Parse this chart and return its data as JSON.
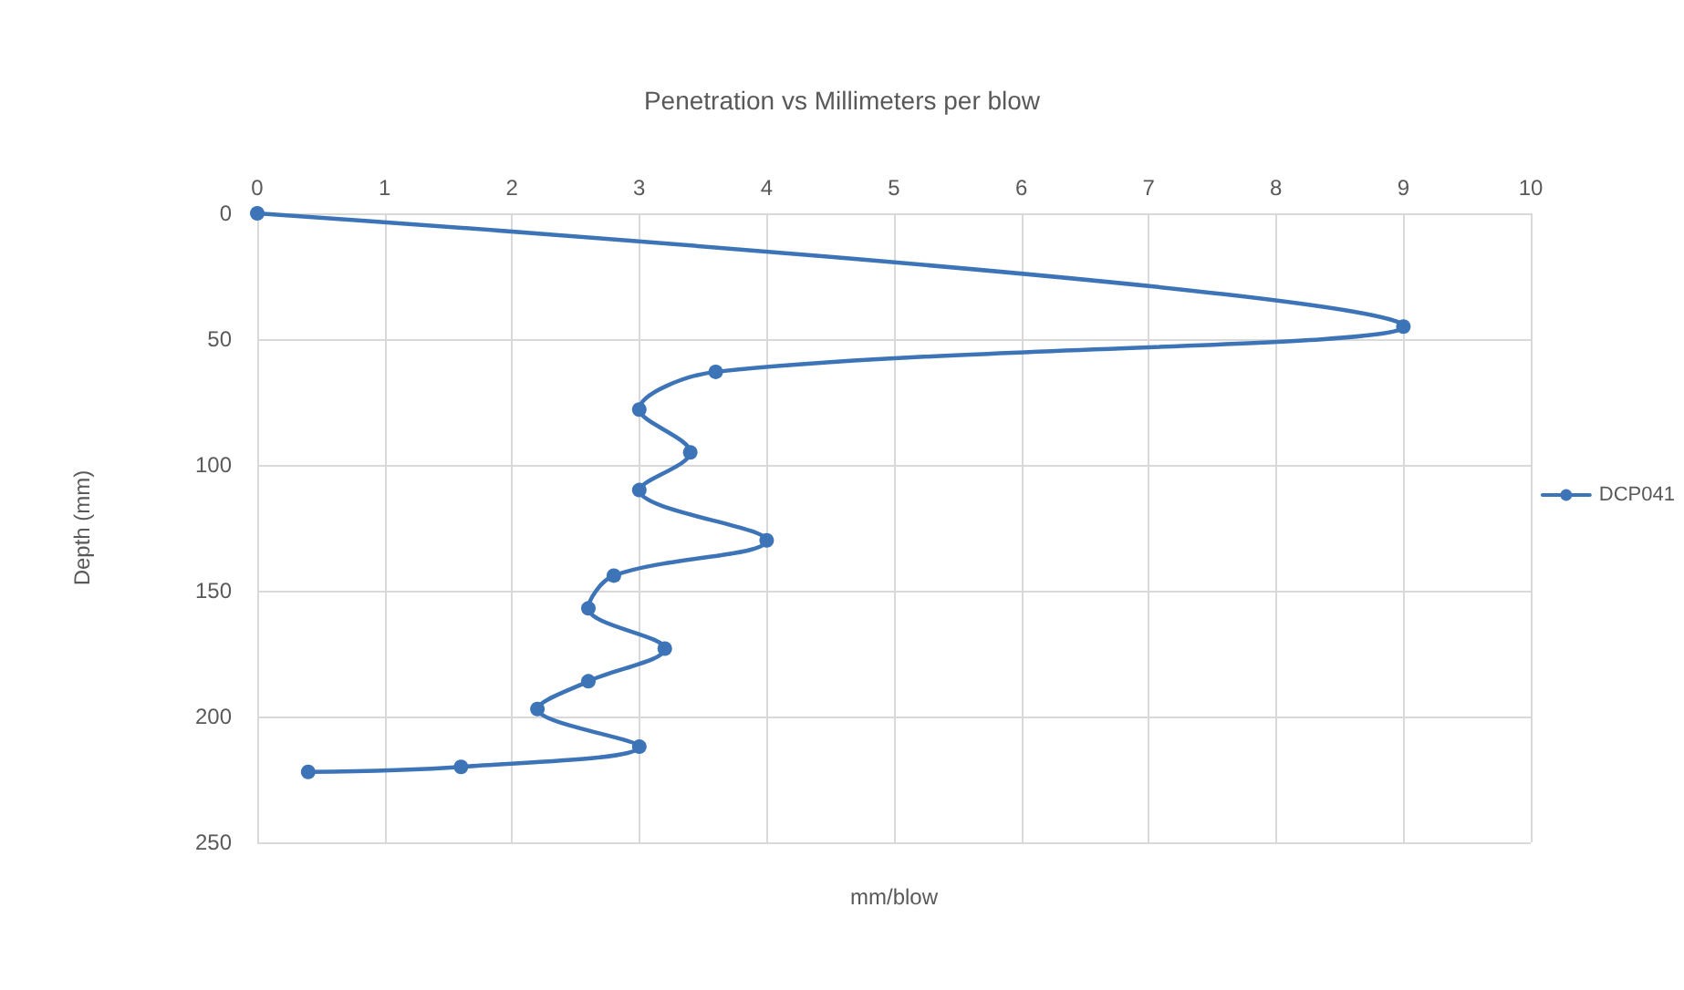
{
  "chart_data": {
    "type": "line",
    "title": "Penetration vs Millimeters per blow",
    "xlabel": "mm/blow",
    "ylabel": "Depth (mm)",
    "x": [
      0,
      9,
      3.6,
      3,
      3.4,
      3,
      4,
      2.8,
      2.6,
      3.2,
      2.6,
      2.2,
      3,
      1.6,
      0.4
    ],
    "series": [
      {
        "name": "DCP041",
        "color": "#3d74b8",
        "values": [
          0,
          45,
          63,
          78,
          95,
          110,
          130,
          144,
          157,
          173,
          186,
          197,
          212,
          220,
          222
        ]
      }
    ],
    "xlim": [
      0,
      10
    ],
    "xticks": [
      0,
      1,
      2,
      3,
      4,
      5,
      6,
      7,
      8,
      9,
      10
    ],
    "ylim": [
      250,
      0
    ],
    "yticks": [
      0,
      50,
      100,
      150,
      200,
      250
    ],
    "grid": true,
    "legend": "right",
    "marker": "circle",
    "line_style": "solid"
  }
}
